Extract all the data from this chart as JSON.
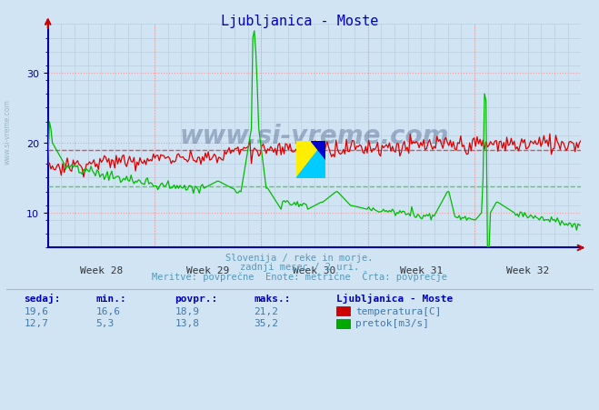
{
  "title": "Ljubljanica - Moste",
  "title_color": "#0000cc",
  "bg_color": "#d0e4f4",
  "plot_bg_color": "#d0e4f4",
  "grid_color_major": "#ff9999",
  "grid_color_minor": "#b8cede",
  "x_weeks": [
    "Week 28",
    "Week 29",
    "Week 30",
    "Week 31",
    "Week 32"
  ],
  "ylim": [
    5,
    37
  ],
  "yticks": [
    10,
    20,
    30
  ],
  "temp_avg": 18.9,
  "flow_avg": 13.8,
  "temp_color": "#dd0000",
  "flow_color": "#00bb00",
  "avg_line_color_temp": "#dd4444",
  "avg_line_color_flow": "#44cc44",
  "subtitle1": "Slovenija / reke in morje.",
  "subtitle2": "zadnji mesec / 2 uri.",
  "subtitle3": "Meritve: povprečne  Enote: metrične  Črta: povprečje",
  "subtitle_color": "#5599bb",
  "table_header_color": "#0000bb",
  "table_color": "#4477aa",
  "station_name": "Ljubljanica - Moste",
  "legend_temp_label": "temperatura[C]",
  "legend_flow_label": "pretok[m3/s]",
  "sedaj_temp": "19,6",
  "min_temp": "16,6",
  "povpr_temp": "18,9",
  "maks_temp": "21,2",
  "sedaj_flow": "12,7",
  "min_flow": "5,3",
  "povpr_flow": "13,8",
  "maks_flow": "35,2",
  "n_points": 360,
  "watermark_text": "www.si-vreme.com",
  "watermark_color": "#1a3060",
  "watermark_alpha": 0.3,
  "side_watermark_color": "#7799aa",
  "side_watermark_alpha": 0.6
}
